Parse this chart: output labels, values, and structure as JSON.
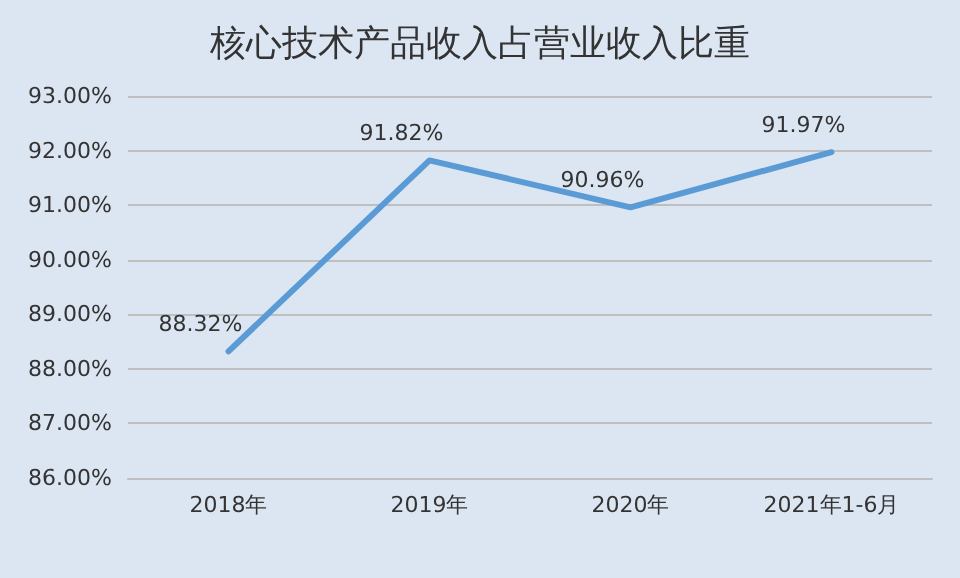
{
  "chart_data": {
    "type": "line",
    "title": "核心技术产品收入占营业收入比重",
    "categories": [
      "2018年",
      "2019年",
      "2020年",
      "2021年1-6月"
    ],
    "series": [
      {
        "color": "#5b9bd5",
        "values": [
          88.32,
          91.82,
          90.96,
          91.97
        ],
        "value_labels": [
          "88.32%",
          "91.82%",
          "90.96%",
          "91.97%"
        ]
      }
    ],
    "ylim": [
      86,
      93
    ],
    "yticks": [
      {
        "value": 86,
        "label": "86.00%"
      },
      {
        "value": 87,
        "label": "87.00%"
      },
      {
        "value": 88,
        "label": "88.00%"
      },
      {
        "value": 89,
        "label": "89.00%"
      },
      {
        "value": 90,
        "label": "90.00%"
      },
      {
        "value": 91,
        "label": "91.00%"
      },
      {
        "value": 92,
        "label": "92.00%"
      },
      {
        "value": 93,
        "label": "93.00%"
      }
    ],
    "grid": "y",
    "marker": "none",
    "line_style": "solid"
  }
}
